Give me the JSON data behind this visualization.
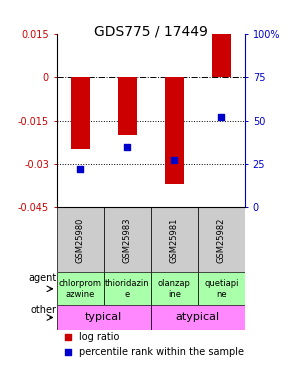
{
  "title": "GDS775 / 17449",
  "samples": [
    "GSM25980",
    "GSM25983",
    "GSM25981",
    "GSM25982"
  ],
  "log_ratios": [
    -0.025,
    -0.02,
    -0.037,
    0.015
  ],
  "percentiles": [
    22,
    35,
    27,
    52
  ],
  "ylim_left": [
    -0.045,
    0.015
  ],
  "ylim_right": [
    0,
    100
  ],
  "yticks_left": [
    0.015,
    0,
    -0.015,
    -0.03,
    -0.045
  ],
  "yticks_right": [
    100,
    75,
    50,
    25,
    0
  ],
  "ytick_labels_left": [
    "0.015",
    "0",
    "-0.015",
    "-0.03",
    "-0.045"
  ],
  "ytick_labels_right": [
    "100%",
    "75",
    "50",
    "25",
    "0"
  ],
  "hlines_dotted": [
    -0.015,
    -0.03
  ],
  "hline_dashdot": 0,
  "bar_color": "#cc0000",
  "percentile_color": "#0000cc",
  "bar_width": 0.4,
  "agents": [
    "chlorprom\nazwine",
    "thioridazin\ne",
    "olanzap\nine",
    "quetiapi\nne"
  ],
  "agent_color": "#aaffaa",
  "other_color": "#ff88ff",
  "sample_color": "#cccccc",
  "legend_red": "log ratio",
  "legend_blue": "percentile rank within the sample",
  "left_label_color": "#cc0000",
  "right_label_color": "#0000cc",
  "title_fontsize": 10,
  "tick_fontsize": 7,
  "agent_fontsize": 6,
  "other_fontsize": 8,
  "sample_fontsize": 6
}
